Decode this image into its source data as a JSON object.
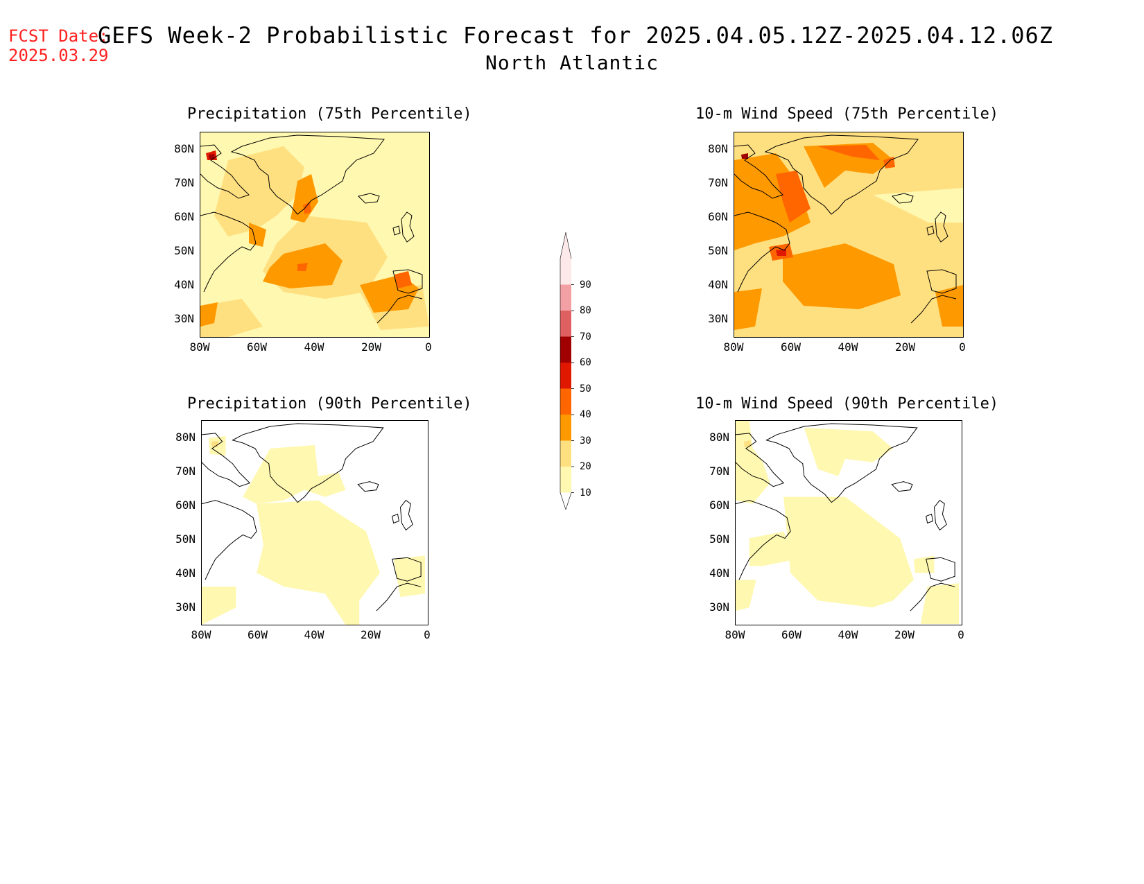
{
  "forecast_date": {
    "label": "FCST Date:",
    "value": "2025.03.29"
  },
  "title": {
    "line1": "GEFS Week-2 Probabilistic Forecast for 2025.04.05.12Z-2025.04.12.06Z",
    "line2": "North Atlantic"
  },
  "panels": [
    {
      "title": "Precipitation (75th Percentile)"
    },
    {
      "title": "10-m Wind Speed (75th Percentile)"
    },
    {
      "title": "Precipitation (90th Percentile)"
    },
    {
      "title": "10-m Wind Speed (90th Percentile)"
    }
  ],
  "lat_labels": [
    "80N",
    "70N",
    "60N",
    "50N",
    "40N",
    "30N"
  ],
  "lon_labels": [
    "80W",
    "60W",
    "40W",
    "20W",
    "0"
  ],
  "colorbar": {
    "labels": [
      "90",
      "80",
      "70",
      "60",
      "50",
      "40",
      "30",
      "20",
      "10"
    ],
    "colors": [
      "#fde8ea",
      "#f2a0a4",
      "#de6060",
      "#a00000",
      "#e01800",
      "#ff6600",
      "#ff9900",
      "#ffe080",
      "#fff8b0"
    ]
  }
}
